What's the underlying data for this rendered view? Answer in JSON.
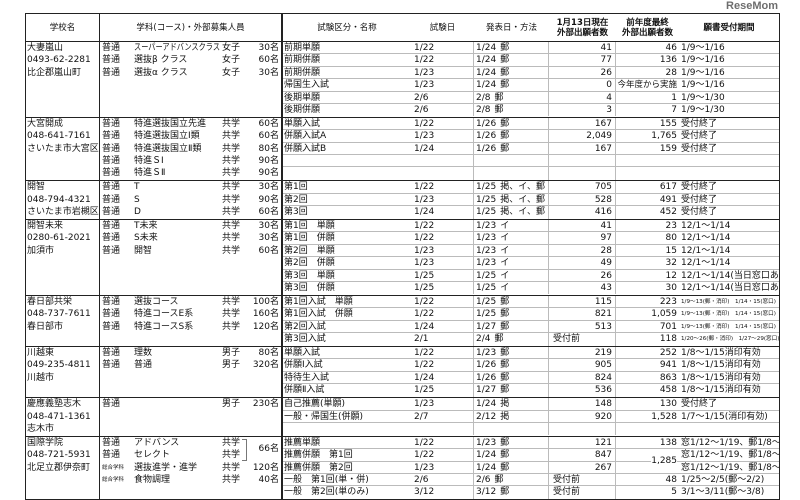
{
  "header": {
    "school": "学校名",
    "course": "学科(コース)・外部募集人員",
    "exam_name": "試験区分・名称",
    "exam_date": "試験日",
    "announce": "発表日・方法",
    "applicants": "1月13日現在\n外部出願者数",
    "prev": "前年度最終\n外部出願者数",
    "period": "願書受付期間"
  },
  "schools": [
    {
      "name": "大妻嵐山",
      "phone": "0493-62-2281",
      "city": "比企郡嵐山町",
      "courses": [
        {
          "type": "普通",
          "name": "スーパーアドバンスクラス",
          "sex": "女子",
          "cap": "30名"
        },
        {
          "type": "普通",
          "name": "選抜β クラス",
          "sex": "女子",
          "cap": "60名"
        },
        {
          "type": "普通",
          "name": "選抜α クラス",
          "sex": "女子",
          "cap": "30名"
        }
      ],
      "exams": [
        {
          "name": "前期単願",
          "date": "1/22",
          "ann": "1/24",
          "method": "郵",
          "cnt": "41",
          "prev": "46",
          "period": "1/9～1/16"
        },
        {
          "name": "前期併願",
          "date": "1/22",
          "ann": "1/24",
          "method": "郵",
          "cnt": "77",
          "prev": "136",
          "period": "1/9～1/16"
        },
        {
          "name": "前期併願",
          "date": "1/23",
          "ann": "1/24",
          "method": "郵",
          "cnt": "26",
          "prev": "28",
          "period": "1/9～1/16"
        },
        {
          "name": "帰国生入試",
          "date": "1/23",
          "ann": "1/24",
          "method": "郵",
          "cnt": "0",
          "prev": "今年度から実施",
          "period": "1/9～1/16"
        },
        {
          "name": "後期単願",
          "date": "2/6",
          "ann": "2/8",
          "method": "郵",
          "cnt": "4",
          "prev": "1",
          "period": "1/9～1/30"
        },
        {
          "name": "後期併願",
          "date": "2/6",
          "ann": "2/8",
          "method": "郵",
          "cnt": "3",
          "prev": "7",
          "period": "1/9～1/30"
        }
      ]
    },
    {
      "name": "大宮開成",
      "phone": "048-641-7161",
      "city": "さいたま市大宮区",
      "courses": [
        {
          "type": "普通",
          "name": "特進選抜国立先進",
          "sex": "共学",
          "cap": "60名"
        },
        {
          "type": "普通",
          "name": "特進選抜国立Ⅰ類",
          "sex": "共学",
          "cap": "60名"
        },
        {
          "type": "普通",
          "name": "特進選抜国立Ⅱ類",
          "sex": "共学",
          "cap": "80名"
        },
        {
          "type": "普通",
          "name": "特進ＳⅠ",
          "sex": "共学",
          "cap": "90名"
        },
        {
          "type": "普通",
          "name": "特進ＳⅡ",
          "sex": "共学",
          "cap": "90名"
        }
      ],
      "exams": [
        {
          "name": "単願入試",
          "date": "1/22",
          "ann": "1/26",
          "method": "郵",
          "cnt": "167",
          "prev": "155",
          "period": "受付終了"
        },
        {
          "name": "併願入試A",
          "date": "1/23",
          "ann": "1/26",
          "method": "郵",
          "cnt": "2,049",
          "prev": "1,765",
          "period": "受付終了"
        },
        {
          "name": "併願入試B",
          "date": "1/24",
          "ann": "1/26",
          "method": "郵",
          "cnt": "167",
          "prev": "159",
          "period": "受付終了"
        },
        {},
        {}
      ]
    },
    {
      "name": "開智",
      "phone": "048-794-4321",
      "city": "さいたま市岩槻区",
      "courses": [
        {
          "type": "普通",
          "name": "T",
          "sex": "共学",
          "cap": "30名"
        },
        {
          "type": "普通",
          "name": "S",
          "sex": "共学",
          "cap": "90名"
        },
        {
          "type": "普通",
          "name": "D",
          "sex": "共学",
          "cap": "60名"
        }
      ],
      "exams": [
        {
          "name": "第1回",
          "date": "1/22",
          "ann": "1/25",
          "method": "掲、イ、郵",
          "cnt": "705",
          "prev": "617",
          "period": "受付終了"
        },
        {
          "name": "第2回",
          "date": "1/23",
          "ann": "1/25",
          "method": "掲、イ、郵",
          "cnt": "528",
          "prev": "491",
          "period": "受付終了"
        },
        {
          "name": "第3回",
          "date": "1/24",
          "ann": "1/25",
          "method": "掲、イ、郵",
          "cnt": "416",
          "prev": "452",
          "period": "受付終了"
        }
      ]
    },
    {
      "name": "開智未来",
      "phone": "0280-61-2021",
      "city": "加須市",
      "courses": [
        {
          "type": "普通",
          "name": "T未来",
          "sex": "共学",
          "cap": "30名"
        },
        {
          "type": "普通",
          "name": "S未来",
          "sex": "共学",
          "cap": "30名"
        },
        {
          "type": "普通",
          "name": "開智",
          "sex": "共学",
          "cap": "60名"
        }
      ],
      "exams": [
        {
          "name": "第1回　単願",
          "date": "1/22",
          "ann": "1/23",
          "method": "イ",
          "cnt": "41",
          "prev": "23",
          "period": "12/1～1/14"
        },
        {
          "name": "第1回　併願",
          "date": "1/22",
          "ann": "1/23",
          "method": "イ",
          "cnt": "97",
          "prev": "80",
          "period": "12/1～1/14"
        },
        {
          "name": "第2回　単願",
          "date": "1/23",
          "ann": "1/23",
          "method": "イ",
          "cnt": "28",
          "prev": "15",
          "period": "12/1～1/14"
        },
        {
          "name": "第2回　併願",
          "date": "1/23",
          "ann": "1/23",
          "method": "イ",
          "cnt": "49",
          "prev": "32",
          "period": "12/1～1/14"
        },
        {
          "name": "第3回　単願",
          "date": "1/25",
          "ann": "1/25",
          "method": "イ",
          "cnt": "26",
          "prev": "12",
          "period": "12/1～1/14(当日窓口あり)"
        },
        {
          "name": "第3回　併願",
          "date": "1/25",
          "ann": "1/25",
          "method": "イ",
          "cnt": "43",
          "prev": "30",
          "period": "12/1～1/14(当日窓口あり)"
        }
      ]
    },
    {
      "name": "春日部共栄",
      "phone": "048-737-7611",
      "city": "春日部市",
      "courses": [
        {
          "type": "普通",
          "name": "選抜コース",
          "sex": "共学",
          "cap": "100名"
        },
        {
          "type": "普通",
          "name": "特進コースE系",
          "sex": "共学",
          "cap": "160名"
        },
        {
          "type": "普通",
          "name": "特進コースS系",
          "sex": "共学",
          "cap": "120名"
        }
      ],
      "exams": [
        {
          "name": "第1回入試　単願",
          "date": "1/22",
          "ann": "1/25",
          "method": "郵",
          "cnt": "115",
          "prev": "223",
          "period": "1/9～13(郵・消印)　1/14・15(窓口)",
          "small": true
        },
        {
          "name": "第1回入試　併願",
          "date": "1/22",
          "ann": "1/25",
          "method": "郵",
          "cnt": "821",
          "prev": "1,059",
          "period": "1/9～13(郵・消印)　1/14・15(窓口)",
          "small": true
        },
        {
          "name": "第2回入試",
          "date": "1/24",
          "ann": "1/27",
          "method": "郵",
          "cnt": "513",
          "prev": "701",
          "period": "1/9～13(郵・消印)　1/14・15(窓口)",
          "small": true
        },
        {
          "name": "第3回入試",
          "date": "2/1",
          "ann": "2/4",
          "method": "郵",
          "cnt": "受付前",
          "prev": "118",
          "period": "1/20～26(郵・消印)　1/27～29(窓口)",
          "small": true
        }
      ]
    },
    {
      "name": "川越東",
      "phone": "049-235-4811",
      "city": "川越市",
      "courses": [
        {
          "type": "普通",
          "name": "理数",
          "sex": "男子",
          "cap": "80名"
        },
        {
          "type": "普通",
          "name": "普通",
          "sex": "男子",
          "cap": "320名"
        }
      ],
      "exams": [
        {
          "name": "単願入試",
          "date": "1/22",
          "ann": "1/23",
          "method": "郵",
          "cnt": "219",
          "prev": "252",
          "period": "1/8～1/15消印有効"
        },
        {
          "name": "併願Ⅰ入試",
          "date": "1/22",
          "ann": "1/26",
          "method": "郵",
          "cnt": "905",
          "prev": "941",
          "period": "1/8～1/15消印有効"
        },
        {
          "name": "特待生入試",
          "date": "1/24",
          "ann": "1/26",
          "method": "郵",
          "cnt": "824",
          "prev": "863",
          "period": "1/8～1/15消印有効"
        },
        {
          "name": "併願Ⅱ入試",
          "date": "1/25",
          "ann": "1/27",
          "method": "郵",
          "cnt": "536",
          "prev": "458",
          "period": "1/8～1/15消印有効"
        }
      ]
    },
    {
      "name": "慶應義塾志木",
      "phone": "048-471-1361",
      "city": "志木市",
      "courses": [
        {
          "type": "普通",
          "name": "",
          "sex": "男子",
          "cap": "230名"
        }
      ],
      "exams": [
        {
          "name": "自己推薦(単願)",
          "date": "1/23",
          "ann": "1/24",
          "method": "掲",
          "cnt": "148",
          "prev": "130",
          "period": "受付終了"
        },
        {
          "name": "一般・帰国生(併願)",
          "date": "2/7",
          "ann": "2/12",
          "method": "掲",
          "cnt": "920",
          "prev": "1,528",
          "period": "1/7～1/15(消印有効)"
        },
        {}
      ]
    },
    {
      "name": "国際学院",
      "phone": "048-721-5931",
      "city": "北足立郡伊奈町",
      "courses": [
        {
          "type": "普通",
          "name": "アドバンス",
          "sex": "共学",
          "cap": "66名",
          "span": 2
        },
        {
          "type": "普通",
          "name": "セレクト",
          "sex": "共学",
          "cap": ""
        },
        {
          "type": "総合学科",
          "name": "選抜進学・進学",
          "sex": "共学",
          "cap": "120名",
          "small": true
        },
        {
          "type": "総合学科",
          "name": "食物調理",
          "sex": "共学",
          "cap": "40名",
          "small": true
        }
      ],
      "exams": [
        {
          "name": "推薦単願",
          "date": "1/22",
          "ann": "1/23",
          "method": "郵",
          "cnt": "121",
          "prev": "138",
          "period": "窓1/12～1/19、郵1/8～1/18"
        },
        {
          "name": "推薦併願　第1回",
          "date": "1/22",
          "ann": "1/24",
          "method": "郵",
          "cnt": "847",
          "prev": "1,285",
          "prev_span": 2,
          "period": "窓1/12～1/19、郵1/8～1/18"
        },
        {
          "name": "推薦併願　第2回",
          "date": "1/23",
          "ann": "1/24",
          "method": "郵",
          "cnt": "267",
          "period": "窓1/12～1/19、郵1/8～1/18"
        },
        {
          "name": "一般　第1回(単・併)",
          "date": "2/6",
          "ann": "2/6",
          "method": "郵",
          "cnt": "受付前",
          "prev": "48",
          "period": "1/25～2/5(郵～2/2)"
        },
        {
          "name": "一般　第2回(単のみ)",
          "date": "3/12",
          "ann": "3/12",
          "method": "郵",
          "cnt": "受付前",
          "prev": "5",
          "period": "3/1～3/11(郵～3/8)"
        }
      ]
    }
  ],
  "logo": "ReseMom"
}
